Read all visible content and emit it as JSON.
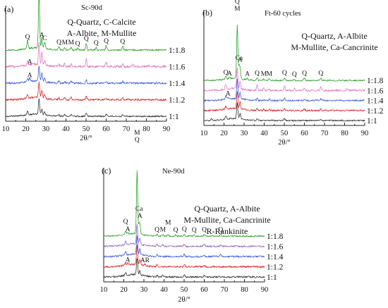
{
  "figure": {
    "panels": [
      {
        "id": "a",
        "panel_label": "(a)",
        "subtitle": "Sc-90d",
        "legend_lines": [
          "Q-Quartz, C-Calcite",
          "A-Albite, M-Mullite"
        ],
        "xlabel": "2θ/°",
        "xticks": [
          "10",
          "20",
          "30",
          "40",
          "50",
          "60",
          "70",
          "80",
          "90"
        ],
        "annotations": [
          {
            "text": "M",
            "x": 26.6,
            "line": "1:1.8",
            "stack": 2
          },
          {
            "text": "Q",
            "x": 26.6,
            "line": "1:1.8",
            "stack": 1
          },
          {
            "text": "Q",
            "x": 20.9,
            "line": "1:1.8",
            "stack": 0
          },
          {
            "text": "A",
            "x": 22.0,
            "line": "1:1.6",
            "stack": 0
          },
          {
            "text": "A",
            "x": 28.0,
            "line": "1:1.8",
            "stack": 0
          },
          {
            "text": "C",
            "x": 29.4,
            "line": "1:1.8",
            "stack": 0
          },
          {
            "text": "Q",
            "x": 36.5,
            "line": "1:1.8",
            "stack": 0
          },
          {
            "text": "M",
            "x": 39.4,
            "line": "1:1.8",
            "stack": 0
          },
          {
            "text": "M",
            "x": 42.6,
            "line": "1:1.8",
            "stack": 0
          },
          {
            "text": "Q",
            "x": 45.8,
            "line": "1:1.8",
            "stack": 0
          },
          {
            "text": "Q",
            "x": 50.1,
            "line": "1:1.8",
            "stack": 0
          },
          {
            "text": "Q",
            "x": 55.0,
            "line": "1:1.8",
            "stack": 0
          },
          {
            "text": "Q",
            "x": 60.0,
            "line": "1:1.8",
            "stack": 0
          },
          {
            "text": "Q",
            "x": 68.2,
            "line": "1:1.8",
            "stack": 0
          },
          {
            "text": "A",
            "x": 22.0,
            "line": "1:1.4",
            "stack": 0
          }
        ]
      },
      {
        "id": "b",
        "panel_label": "(b)",
        "subtitle": "Ft-60 cycles",
        "legend_lines": [
          "Q-Quartz, A-Albite",
          "M-Mullite, Ca-Cancrinite"
        ],
        "xlabel": "2θ/°",
        "xticks": [
          "10",
          "20",
          "30",
          "40",
          "50",
          "60",
          "70",
          "80",
          "90"
        ],
        "annotations": [
          {
            "text": "Q",
            "x": 26.6,
            "line": "1:1.8",
            "stack": 3
          },
          {
            "text": "M",
            "x": 26.6,
            "line": "1:1.8",
            "stack": 2
          },
          {
            "text": "Ca",
            "x": 27.5,
            "line": "1:1.8",
            "stack": 1
          },
          {
            "text": "Q",
            "x": 20.9,
            "line": "1:1.8",
            "stack": 0
          },
          {
            "text": "A",
            "x": 22.8,
            "line": "1:1.8",
            "stack": 0
          },
          {
            "text": "A",
            "x": 28.0,
            "line": "1:1.8",
            "stack": 1
          },
          {
            "text": "A",
            "x": 31.6,
            "line": "1:1.8",
            "stack": 0
          },
          {
            "text": "Q",
            "x": 36.5,
            "line": "1:1.8",
            "stack": 0
          },
          {
            "text": "M",
            "x": 39.8,
            "line": "1:1.8",
            "stack": 0
          },
          {
            "text": "M",
            "x": 42.6,
            "line": "1:1.8",
            "stack": 0
          },
          {
            "text": "Q",
            "x": 50.1,
            "line": "1:1.8",
            "stack": 0
          },
          {
            "text": "Q",
            "x": 55.0,
            "line": "1:1.8",
            "stack": 0
          },
          {
            "text": "Q",
            "x": 60.0,
            "line": "1:1.8",
            "stack": 0
          },
          {
            "text": "Q",
            "x": 68.2,
            "line": "1:1.8",
            "stack": 0
          },
          {
            "text": "A",
            "x": 22.0,
            "line": "1:1.4",
            "stack": 0
          }
        ]
      },
      {
        "id": "c",
        "panel_label": "(c)",
        "subtitle": "Ne-90d",
        "legend_lines": [
          "Q-Quartz, A-Albite",
          "M-Mullite, Ca-Cancrinite",
          "R-Rankinite"
        ],
        "xlabel": "2θ/°",
        "xticks": [
          "10",
          "20",
          "30",
          "40",
          "50",
          "60",
          "70",
          "80",
          "90"
        ],
        "annotations": [
          {
            "text": "M",
            "x": 26.6,
            "line": "1:1.8",
            "stack": 5
          },
          {
            "text": "Q",
            "x": 26.6,
            "line": "1:1.8",
            "stack": 4
          },
          {
            "text": "Ca",
            "x": 27.6,
            "line": "1:1.8",
            "stack": 2
          },
          {
            "text": "A",
            "x": 28.0,
            "line": "1:1.8",
            "stack": 1
          },
          {
            "text": "Q",
            "x": 20.9,
            "line": "1:1.8",
            "stack": 1
          },
          {
            "text": "A",
            "x": 22.0,
            "line": "1:1.8",
            "stack": 0
          },
          {
            "text": "Q",
            "x": 36.5,
            "line": "1:1.8",
            "stack": 0
          },
          {
            "text": "M",
            "x": 39.4,
            "line": "1:1.8",
            "stack": 0
          },
          {
            "text": "M",
            "x": 42.0,
            "line": "1:1.8",
            "stack": 1
          },
          {
            "text": "Q",
            "x": 45.8,
            "line": "1:1.8",
            "stack": 0
          },
          {
            "text": "Q",
            "x": 50.1,
            "line": "1:1.8",
            "stack": 0
          },
          {
            "text": "Q",
            "x": 55.0,
            "line": "1:1.8",
            "stack": 0
          },
          {
            "text": "Q",
            "x": 60.0,
            "line": "1:1.8",
            "stack": 0
          },
          {
            "text": "Q",
            "x": 68.2,
            "line": "1:1.8",
            "stack": 0
          },
          {
            "text": "A",
            "x": 22.0,
            "line": "1:1.2",
            "stack": 0
          },
          {
            "text": "AR",
            "x": 30.5,
            "line": "1:1.2",
            "stack": 0
          }
        ]
      }
    ]
  },
  "chart_data": [
    {
      "type": "line",
      "panel": "a",
      "title": "Sc-90d",
      "xlabel": "2θ/°",
      "ylabel": "",
      "xlim": [
        10,
        90
      ],
      "series": [
        {
          "name": "1:1.8",
          "color": "#2ca02c",
          "baseline": 5,
          "noise": 0.25,
          "peaks": [
            [
              20.9,
              2.2
            ],
            [
              26.6,
              14
            ],
            [
              28.0,
              2.6
            ],
            [
              29.4,
              1.8
            ],
            [
              36.5,
              0.8
            ],
            [
              39.4,
              0.7
            ],
            [
              42.6,
              0.7
            ],
            [
              45.8,
              0.5
            ],
            [
              50.1,
              1.7
            ],
            [
              55.0,
              0.6
            ],
            [
              60.0,
              1.1
            ],
            [
              68.2,
              1.0
            ]
          ]
        },
        {
          "name": "1:1.6",
          "color": "#e377c2",
          "baseline": 4,
          "noise": 0.4,
          "peaks": [
            [
              20.9,
              1.2
            ],
            [
              26.6,
              5.5
            ],
            [
              28.0,
              3.0
            ],
            [
              29.4,
              1.4
            ],
            [
              36.5,
              0.6
            ],
            [
              39.4,
              0.8
            ],
            [
              42.6,
              0.7
            ],
            [
              50.1,
              2.0
            ],
            [
              60.0,
              1.2
            ],
            [
              68.2,
              0.9
            ],
            [
              73.5,
              0.5
            ],
            [
              81.2,
              0.5
            ]
          ]
        },
        {
          "name": "1:1.4",
          "color": "#3b5bdb",
          "baseline": 3,
          "noise": 0.3,
          "peaks": [
            [
              20.9,
              1.0
            ],
            [
              22.0,
              0.8
            ],
            [
              26.6,
              4.0
            ],
            [
              28.0,
              2.0
            ],
            [
              29.4,
              1.0
            ],
            [
              36.5,
              0.5
            ],
            [
              39.4,
              0.5
            ],
            [
              42.6,
              0.5
            ],
            [
              50.1,
              0.9
            ],
            [
              60.0,
              0.5
            ],
            [
              68.2,
              0.5
            ]
          ]
        },
        {
          "name": "1:1.2",
          "color": "#d62728",
          "baseline": 2,
          "noise": 0.3,
          "peaks": [
            [
              20.9,
              1.0
            ],
            [
              26.6,
              4.0
            ],
            [
              28.0,
              2.2
            ],
            [
              29.4,
              1.0
            ],
            [
              36.5,
              0.5
            ],
            [
              39.4,
              0.8
            ],
            [
              42.6,
              0.6
            ],
            [
              50.1,
              0.9
            ],
            [
              60.0,
              0.5
            ],
            [
              68.2,
              0.6
            ]
          ]
        },
        {
          "name": "1:1",
          "color": "#333333",
          "baseline": 1,
          "noise": 0.25,
          "peaks": [
            [
              20.9,
              1.2
            ],
            [
              26.6,
              4.2
            ],
            [
              28.0,
              1.6
            ],
            [
              29.4,
              0.8
            ],
            [
              36.5,
              0.4
            ],
            [
              39.4,
              0.5
            ],
            [
              42.6,
              0.4
            ],
            [
              50.1,
              0.9
            ],
            [
              60.0,
              0.5
            ],
            [
              68.2,
              0.5
            ]
          ]
        }
      ]
    },
    {
      "type": "line",
      "panel": "b",
      "title": "Ft-60 cycles",
      "xlabel": "2θ/°",
      "ylabel": "",
      "xlim": [
        10,
        90
      ],
      "series": [
        {
          "name": "1:1.8",
          "color": "#2ca02c",
          "baseline": 5,
          "noise": 0.25,
          "peaks": [
            [
              20.9,
              0.9
            ],
            [
              22.8,
              0.6
            ],
            [
              26.6,
              15
            ],
            [
              27.5,
              3.0
            ],
            [
              28.0,
              2.5
            ],
            [
              31.6,
              0.5
            ],
            [
              36.5,
              0.7
            ],
            [
              39.8,
              0.5
            ],
            [
              42.6,
              0.5
            ],
            [
              50.1,
              0.8
            ],
            [
              55.0,
              0.4
            ],
            [
              60.0,
              0.7
            ],
            [
              68.2,
              0.7
            ]
          ]
        },
        {
          "name": "1:1.6",
          "color": "#e377c2",
          "baseline": 4,
          "noise": 0.35,
          "peaks": [
            [
              20.9,
              1.5
            ],
            [
              26.6,
              6.0
            ],
            [
              28.0,
              2.0
            ],
            [
              36.5,
              1.6
            ],
            [
              39.8,
              0.6
            ],
            [
              42.6,
              0.6
            ],
            [
              50.1,
              1.1
            ],
            [
              55.0,
              0.6
            ],
            [
              60.0,
              0.8
            ],
            [
              68.2,
              1.2
            ],
            [
              81.2,
              0.5
            ]
          ]
        },
        {
          "name": "1:1.4",
          "color": "#3b5bdb",
          "baseline": 3,
          "noise": 0.3,
          "peaks": [
            [
              20.9,
              0.9
            ],
            [
              22.0,
              0.6
            ],
            [
              26.6,
              5.5
            ],
            [
              28.0,
              1.8
            ],
            [
              36.5,
              0.6
            ],
            [
              42.6,
              0.5
            ],
            [
              50.1,
              0.7
            ],
            [
              60.0,
              0.5
            ],
            [
              68.2,
              0.5
            ]
          ]
        },
        {
          "name": "1:1.2",
          "color": "#d62728",
          "baseline": 2,
          "noise": 0.3,
          "peaks": [
            [
              20.9,
              0.8
            ],
            [
              26.6,
              5.0
            ],
            [
              28.0,
              2.0
            ],
            [
              36.5,
              0.5
            ],
            [
              39.8,
              0.5
            ],
            [
              42.6,
              0.5
            ],
            [
              50.1,
              0.6
            ],
            [
              60.0,
              0.5
            ],
            [
              68.2,
              0.5
            ]
          ]
        },
        {
          "name": "1:1",
          "color": "#333333",
          "baseline": 1,
          "noise": 0.25,
          "peaks": [
            [
              13.8,
              0.4
            ],
            [
              20.9,
              0.8
            ],
            [
              26.6,
              4.5
            ],
            [
              28.0,
              1.5
            ],
            [
              36.5,
              0.4
            ],
            [
              50.1,
              0.6
            ],
            [
              68.2,
              0.4
            ]
          ]
        }
      ]
    },
    {
      "type": "line",
      "panel": "c",
      "title": "Ne-90d",
      "xlabel": "2θ/°",
      "ylabel": "",
      "xlim": [
        10,
        90
      ],
      "series": [
        {
          "name": "1:1.8",
          "color": "#2ca02c",
          "baseline": 5,
          "noise": 0.2,
          "peaks": [
            [
              20.9,
              0.7
            ],
            [
              22.0,
              0.5
            ],
            [
              26.6,
              15
            ],
            [
              27.6,
              2.0
            ],
            [
              28.0,
              1.6
            ],
            [
              36.5,
              0.4
            ],
            [
              39.4,
              0.4
            ],
            [
              42.0,
              0.4
            ],
            [
              45.8,
              0.3
            ],
            [
              50.1,
              0.5
            ],
            [
              55.0,
              0.3
            ],
            [
              60.0,
              0.4
            ],
            [
              68.2,
              0.4
            ]
          ]
        },
        {
          "name": "1:1.6",
          "color": "#9467bd",
          "baseline": 4,
          "noise": 0.25,
          "peaks": [
            [
              20.9,
              0.8
            ],
            [
              26.6,
              4.5
            ],
            [
              28.0,
              1.5
            ],
            [
              36.5,
              0.4
            ],
            [
              39.4,
              0.4
            ],
            [
              50.1,
              0.6
            ],
            [
              60.0,
              0.5
            ],
            [
              68.2,
              0.4
            ]
          ]
        },
        {
          "name": "1:1.4",
          "color": "#3b5bdb",
          "baseline": 3,
          "noise": 0.25,
          "peaks": [
            [
              20.9,
              0.8
            ],
            [
              26.6,
              4.5
            ],
            [
              28.0,
              1.4
            ],
            [
              36.5,
              0.4
            ],
            [
              50.1,
              0.5
            ],
            [
              60.0,
              0.4
            ],
            [
              68.2,
              0.4
            ]
          ]
        },
        {
          "name": "1:1.2",
          "color": "#d62728",
          "baseline": 2,
          "noise": 0.25,
          "peaks": [
            [
              20.9,
              0.6
            ],
            [
              22.0,
              0.5
            ],
            [
              26.6,
              4.5
            ],
            [
              28.0,
              1.2
            ],
            [
              30.5,
              0.4
            ],
            [
              36.5,
              0.4
            ],
            [
              50.1,
              0.5
            ],
            [
              60.0,
              0.4
            ]
          ]
        },
        {
          "name": "1:1",
          "color": "#333333",
          "baseline": 1,
          "noise": 0.25,
          "peaks": [
            [
              20.9,
              0.7
            ],
            [
              26.6,
              4.0
            ],
            [
              28.0,
              1.0
            ],
            [
              36.5,
              0.4
            ],
            [
              39.4,
              0.4
            ],
            [
              50.1,
              0.6
            ],
            [
              60.0,
              0.3
            ]
          ]
        }
      ]
    }
  ]
}
